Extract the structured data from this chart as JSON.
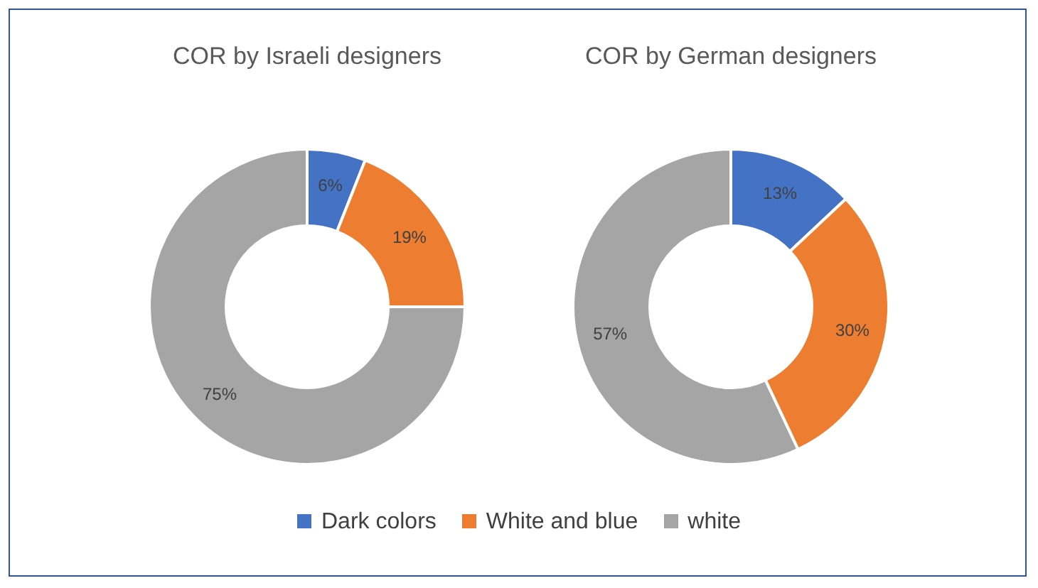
{
  "chart_data": [
    {
      "type": "donut",
      "title": "COR by Israeli designers",
      "categories": [
        "Dark colors",
        "White and blue",
        "white"
      ],
      "values": [
        6,
        19,
        75
      ],
      "colors": [
        "#4472c4",
        "#ed7d31",
        "#a5a5a5"
      ],
      "value_labels": [
        "6%",
        "19%",
        "75%"
      ],
      "legend": "bottom"
    },
    {
      "type": "donut",
      "title": "COR by German designers",
      "categories": [
        null,
        null,
        null
      ],
      "values": [
        13,
        30,
        57
      ],
      "colors": [
        "#4472c4",
        "#ed7d31",
        "#a5a5a5"
      ],
      "value_labels": [
        "13%",
        "30%",
        "57%"
      ]
    }
  ]
}
